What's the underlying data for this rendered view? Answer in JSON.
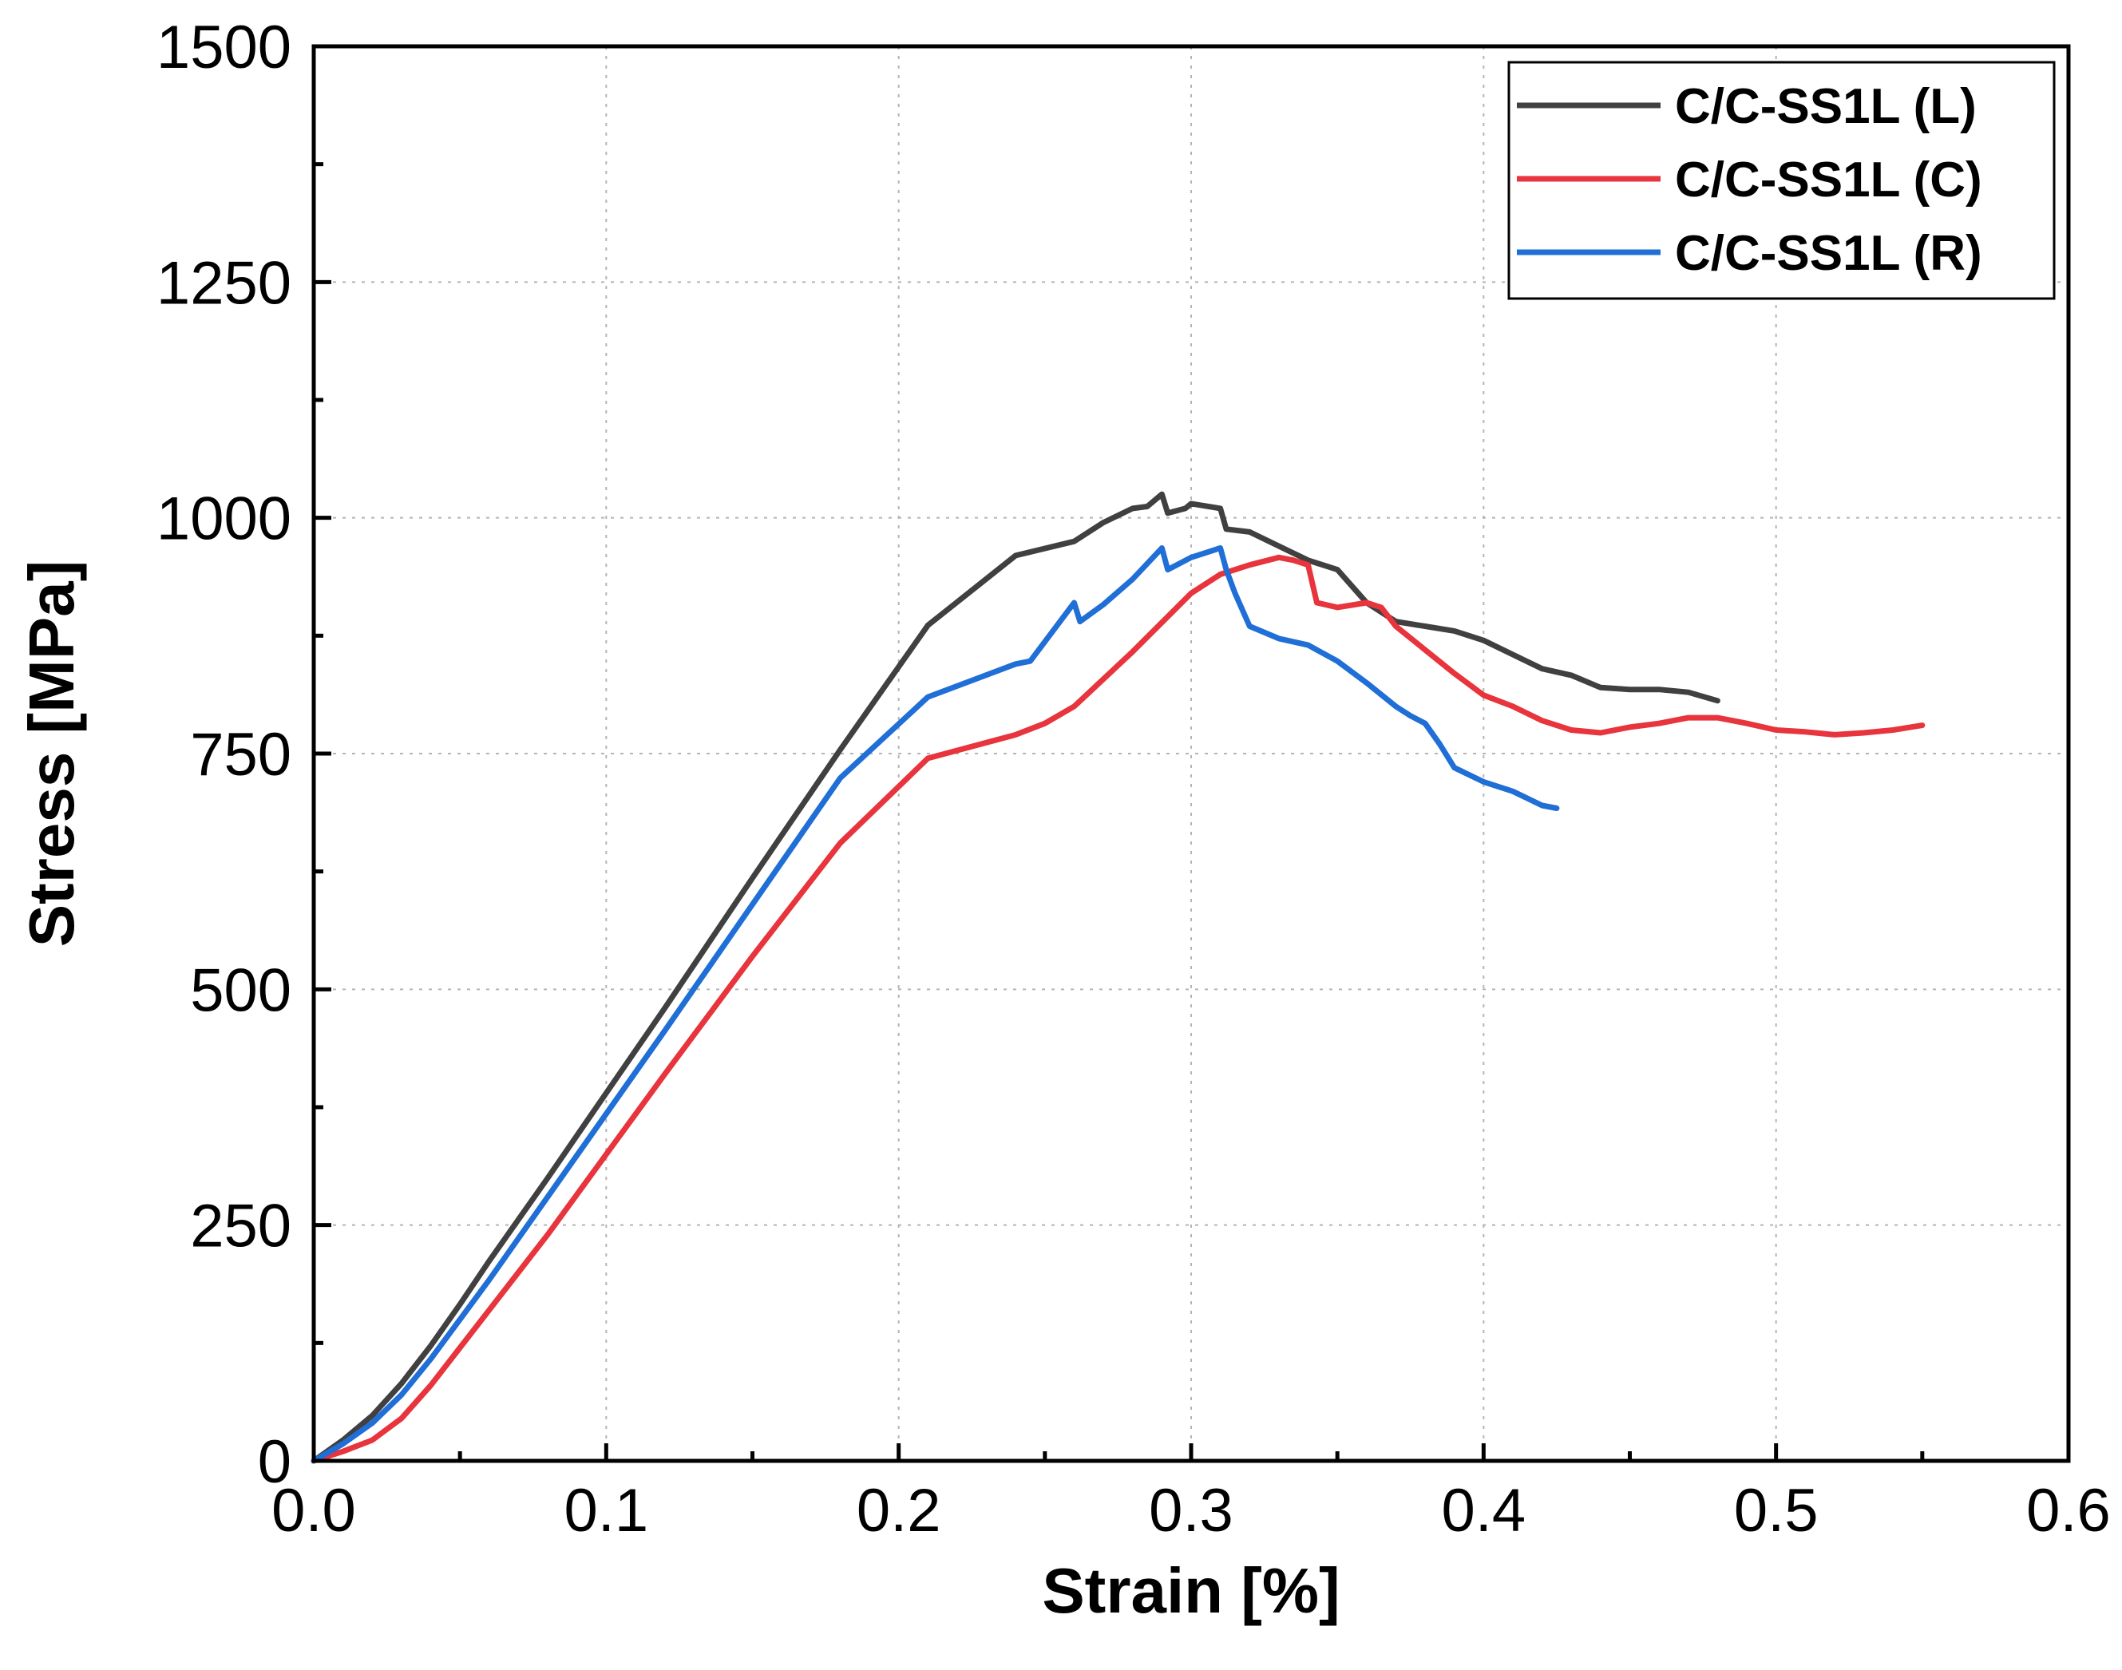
{
  "chart_data": {
    "type": "line",
    "title": "",
    "xlabel": "Strain [%]",
    "ylabel": "Stress [MPa]",
    "xlim": [
      0.0,
      0.6
    ],
    "ylim": [
      0,
      1500
    ],
    "x_ticks": [
      0.0,
      0.1,
      0.2,
      0.3,
      0.4,
      0.5,
      0.6
    ],
    "x_tick_labels": [
      "0.0",
      "0.1",
      "0.2",
      "0.3",
      "0.4",
      "0.5",
      "0.6"
    ],
    "y_ticks": [
      0,
      250,
      500,
      750,
      1000,
      1250,
      1500
    ],
    "y_tick_labels": [
      "0",
      "250",
      "500",
      "750",
      "1000",
      "1250",
      "1500"
    ],
    "x_minor_step": 0.05,
    "y_minor_step": 125,
    "grid": true,
    "legend_position": "top-right",
    "series": [
      {
        "name": "C/C-SS1L (L)",
        "color": "#404040",
        "points": [
          [
            0.0,
            0
          ],
          [
            0.01,
            22
          ],
          [
            0.02,
            48
          ],
          [
            0.03,
            82
          ],
          [
            0.04,
            122
          ],
          [
            0.05,
            166
          ],
          [
            0.06,
            212
          ],
          [
            0.08,
            300
          ],
          [
            0.1,
            390
          ],
          [
            0.12,
            480
          ],
          [
            0.15,
            618
          ],
          [
            0.18,
            754
          ],
          [
            0.21,
            886
          ],
          [
            0.24,
            960
          ],
          [
            0.26,
            975
          ],
          [
            0.27,
            995
          ],
          [
            0.28,
            1010
          ],
          [
            0.285,
            1012
          ],
          [
            0.29,
            1025
          ],
          [
            0.292,
            1005
          ],
          [
            0.298,
            1010
          ],
          [
            0.3,
            1015
          ],
          [
            0.31,
            1010
          ],
          [
            0.312,
            988
          ],
          [
            0.32,
            985
          ],
          [
            0.33,
            970
          ],
          [
            0.34,
            955
          ],
          [
            0.35,
            945
          ],
          [
            0.36,
            910
          ],
          [
            0.37,
            890
          ],
          [
            0.38,
            885
          ],
          [
            0.39,
            880
          ],
          [
            0.4,
            870
          ],
          [
            0.41,
            855
          ],
          [
            0.42,
            840
          ],
          [
            0.43,
            833
          ],
          [
            0.44,
            820
          ],
          [
            0.45,
            818
          ],
          [
            0.46,
            818
          ],
          [
            0.47,
            815
          ],
          [
            0.48,
            806
          ]
        ]
      },
      {
        "name": "C/C-SS1L (C)",
        "color": "#e8343c",
        "points": [
          [
            0.0,
            0
          ],
          [
            0.01,
            10
          ],
          [
            0.02,
            22
          ],
          [
            0.03,
            45
          ],
          [
            0.04,
            80
          ],
          [
            0.05,
            120
          ],
          [
            0.06,
            160
          ],
          [
            0.08,
            240
          ],
          [
            0.1,
            325
          ],
          [
            0.12,
            410
          ],
          [
            0.15,
            535
          ],
          [
            0.18,
            655
          ],
          [
            0.21,
            745
          ],
          [
            0.24,
            770
          ],
          [
            0.25,
            782
          ],
          [
            0.26,
            800
          ],
          [
            0.28,
            858
          ],
          [
            0.3,
            920
          ],
          [
            0.31,
            940
          ],
          [
            0.32,
            950
          ],
          [
            0.33,
            958
          ],
          [
            0.335,
            955
          ],
          [
            0.34,
            950
          ],
          [
            0.343,
            910
          ],
          [
            0.35,
            905
          ],
          [
            0.36,
            910
          ],
          [
            0.365,
            905
          ],
          [
            0.37,
            885
          ],
          [
            0.38,
            860
          ],
          [
            0.39,
            835
          ],
          [
            0.4,
            812
          ],
          [
            0.41,
            800
          ],
          [
            0.42,
            785
          ],
          [
            0.43,
            775
          ],
          [
            0.44,
            772
          ],
          [
            0.45,
            778
          ],
          [
            0.46,
            782
          ],
          [
            0.47,
            788
          ],
          [
            0.48,
            788
          ],
          [
            0.49,
            782
          ],
          [
            0.5,
            775
          ],
          [
            0.51,
            773
          ],
          [
            0.52,
            770
          ],
          [
            0.53,
            772
          ],
          [
            0.54,
            775
          ],
          [
            0.55,
            780
          ]
        ]
      },
      {
        "name": "C/C-SS1L (R)",
        "color": "#1f6fd6",
        "points": [
          [
            0.0,
            0
          ],
          [
            0.01,
            18
          ],
          [
            0.02,
            40
          ],
          [
            0.03,
            70
          ],
          [
            0.04,
            108
          ],
          [
            0.05,
            150
          ],
          [
            0.06,
            192
          ],
          [
            0.08,
            280
          ],
          [
            0.1,
            368
          ],
          [
            0.12,
            456
          ],
          [
            0.15,
            590
          ],
          [
            0.18,
            724
          ],
          [
            0.21,
            810
          ],
          [
            0.24,
            845
          ],
          [
            0.245,
            848
          ],
          [
            0.26,
            910
          ],
          [
            0.262,
            890
          ],
          [
            0.27,
            908
          ],
          [
            0.28,
            935
          ],
          [
            0.29,
            968
          ],
          [
            0.292,
            945
          ],
          [
            0.3,
            958
          ],
          [
            0.31,
            968
          ],
          [
            0.312,
            945
          ],
          [
            0.315,
            920
          ],
          [
            0.32,
            885
          ],
          [
            0.33,
            872
          ],
          [
            0.34,
            865
          ],
          [
            0.35,
            848
          ],
          [
            0.36,
            825
          ],
          [
            0.37,
            800
          ],
          [
            0.375,
            790
          ],
          [
            0.38,
            782
          ],
          [
            0.385,
            760
          ],
          [
            0.39,
            735
          ],
          [
            0.4,
            720
          ],
          [
            0.41,
            710
          ],
          [
            0.42,
            695
          ],
          [
            0.425,
            692
          ]
        ]
      }
    ]
  }
}
